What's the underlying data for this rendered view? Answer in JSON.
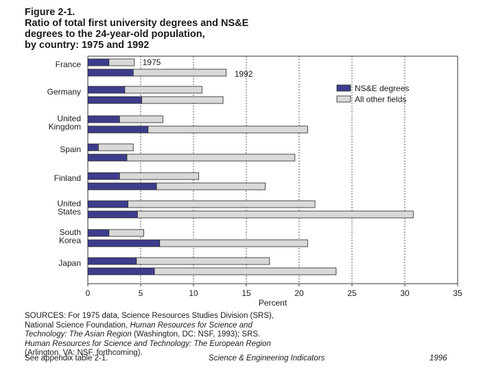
{
  "figure": {
    "label": "Figure 2-1.",
    "title_lines": [
      "Ratio of total first university degrees and NS&E",
      "degrees to the 24-year-old population,",
      "by country: 1975 and 1992"
    ]
  },
  "chart_data": {
    "type": "bar",
    "orientation": "horizontal",
    "stacked": true,
    "categories": [
      "France",
      "Germany",
      "United Kingdom",
      "Spain",
      "Finland",
      "United States",
      "South Korea",
      "Japan"
    ],
    "category_label_lines": [
      [
        "France"
      ],
      [
        "Germany"
      ],
      [
        "United",
        "Kingdom"
      ],
      [
        "Spain"
      ],
      [
        "Finland"
      ],
      [
        "United",
        "States"
      ],
      [
        "South",
        "Korea"
      ],
      [
        "Japan"
      ]
    ],
    "years": [
      "1975",
      "1992"
    ],
    "year_annotations": {
      "1975": "1975",
      "1992": "1992"
    },
    "series": [
      {
        "name": "NS&E degrees",
        "color": "#3e3d8c",
        "values_1975": [
          2.0,
          3.5,
          3.0,
          1.0,
          3.0,
          3.8,
          2.0,
          4.6
        ],
        "values_1992": [
          4.3,
          5.1,
          5.7,
          3.7,
          6.5,
          4.7,
          6.8,
          6.3
        ]
      },
      {
        "name": "All other fields",
        "color": "#d9d9d9",
        "values_1975": [
          2.4,
          7.3,
          4.1,
          3.3,
          7.5,
          17.7,
          3.3,
          12.6
        ],
        "values_1992": [
          8.8,
          7.7,
          15.1,
          15.9,
          10.3,
          26.1,
          14.0,
          17.2
        ]
      }
    ],
    "xlabel": "Percent",
    "xlim": [
      0,
      35
    ],
    "xticks": [
      0,
      5,
      10,
      15,
      20,
      25,
      30,
      35
    ],
    "grid": "vertical dashed",
    "legend_position": "right"
  },
  "sources": {
    "lines": [
      [
        {
          "t": "SOURCES: For 1975 data, Science Resources Studies Division (SRS),",
          "i": false
        }
      ],
      [
        {
          "t": "National Science Foundation, ",
          "i": false
        },
        {
          "t": "Human Resources for Science and",
          "i": true
        }
      ],
      [
        {
          "t": "Technology: The Asian Region",
          "i": true
        },
        {
          "t": " (Washington, DC: NSF, 1993); SRS.",
          "i": false
        }
      ],
      [
        {
          "t": "Human Resources for Science and Technology: The European Region",
          "i": true
        }
      ],
      [
        {
          "t": "(Arlington, VA: NSF, forthcoming).",
          "i": false
        }
      ]
    ],
    "appendix": "See appendix table 2-1.",
    "publication": "Science & Engineering Indicators",
    "year": "1996"
  },
  "colors": {
    "nse": "#3e3d8c",
    "other": "#d9d9d9",
    "text": "#1a1a1a",
    "grid": "#333333"
  }
}
